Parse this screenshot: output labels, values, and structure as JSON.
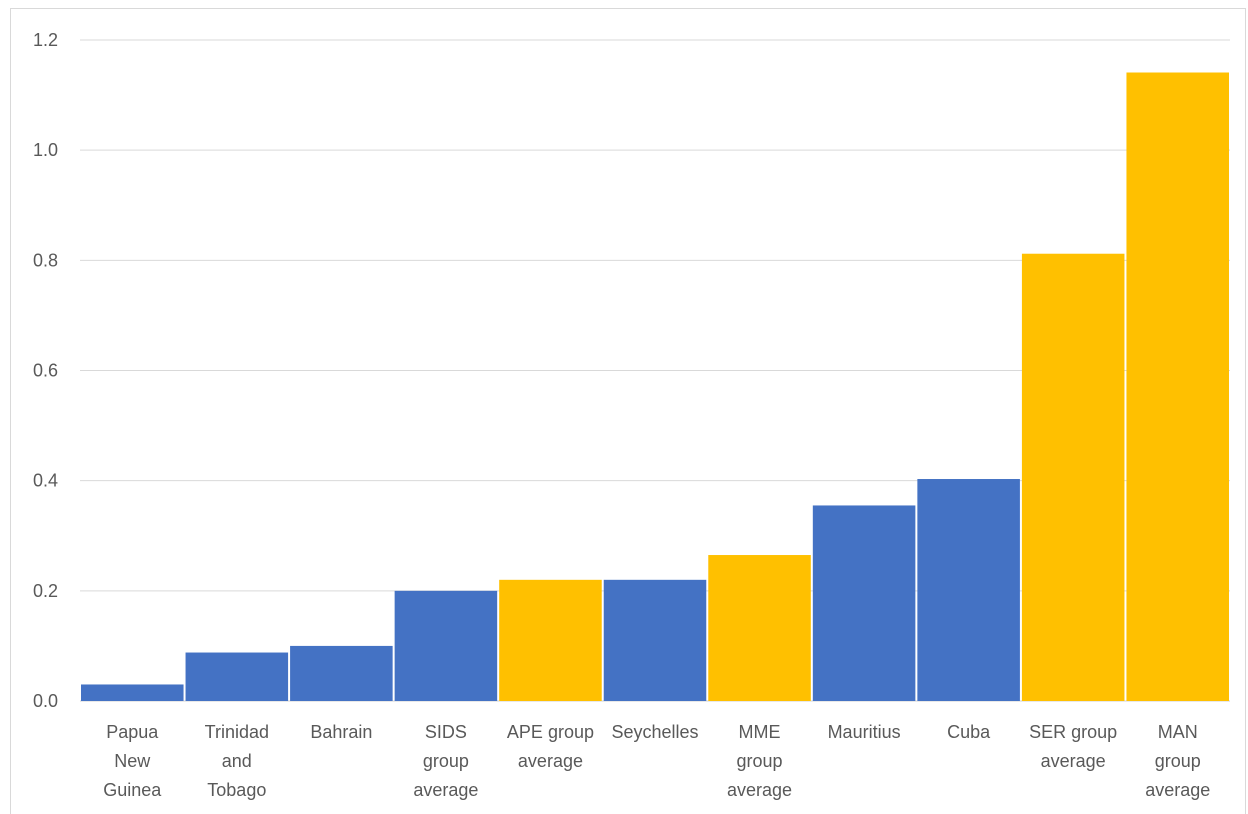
{
  "chart_data": {
    "type": "bar",
    "categories": [
      [
        "Papua",
        "New",
        "Guinea"
      ],
      [
        "Trinidad",
        "and",
        "Tobago"
      ],
      [
        "Bahrain"
      ],
      [
        "SIDS",
        "group",
        "average"
      ],
      [
        "APE group",
        "average"
      ],
      [
        "Seychelles"
      ],
      [
        "MME",
        "group",
        "average"
      ],
      [
        "Mauritius"
      ],
      [
        "Cuba"
      ],
      [
        "SER group",
        "average"
      ],
      [
        "MAN",
        "group",
        "average"
      ]
    ],
    "values": [
      0.03,
      0.088,
      0.1,
      0.2,
      0.22,
      0.22,
      0.265,
      0.355,
      0.403,
      0.812,
      1.141
    ],
    "bar_colors": [
      "#4472C4",
      "#4472C4",
      "#4472C4",
      "#4472C4",
      "#FFC000",
      "#4472C4",
      "#FFC000",
      "#4472C4",
      "#4472C4",
      "#FFC000",
      "#FFC000"
    ],
    "ylim": [
      0,
      1.2
    ],
    "yticks": [
      "0.0",
      "0.2",
      "0.4",
      "0.6",
      "0.8",
      "1.0",
      "1.2"
    ],
    "grid": true,
    "title": "",
    "xlabel": "",
    "ylabel": ""
  }
}
